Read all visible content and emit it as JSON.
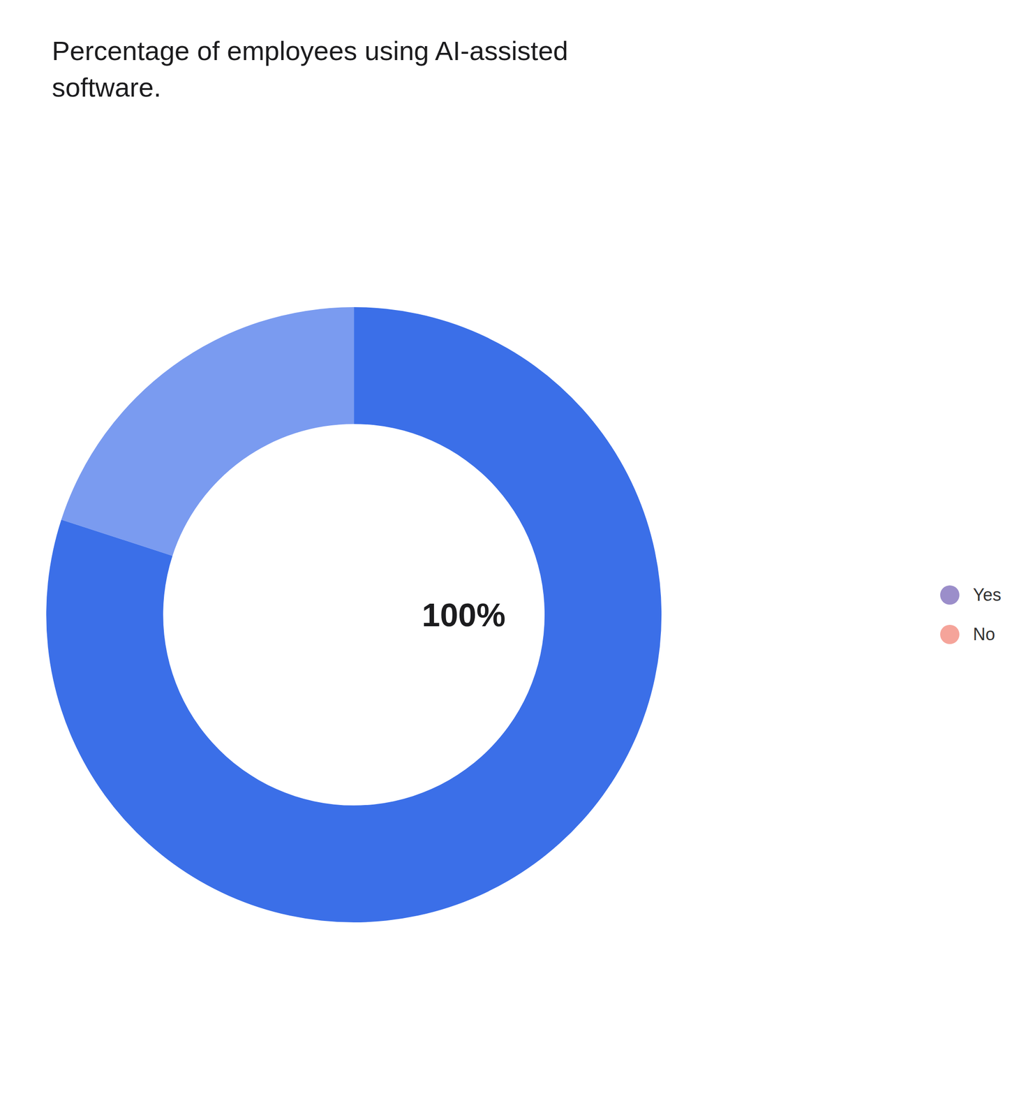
{
  "chart_data": {
    "type": "pie",
    "title": "Percentage of employees using AI-assisted\nsoftware.",
    "values": [
      20,
      80
    ],
    "colors": [
      "#7A9BF0",
      "#3B6FE8"
    ],
    "annotations": [
      "100%"
    ],
    "series": [
      {
        "name": "Yes",
        "color": "#9B8ECA"
      },
      {
        "name": "No",
        "color": "#F5A49A"
      }
    ],
    "legend": "right"
  }
}
